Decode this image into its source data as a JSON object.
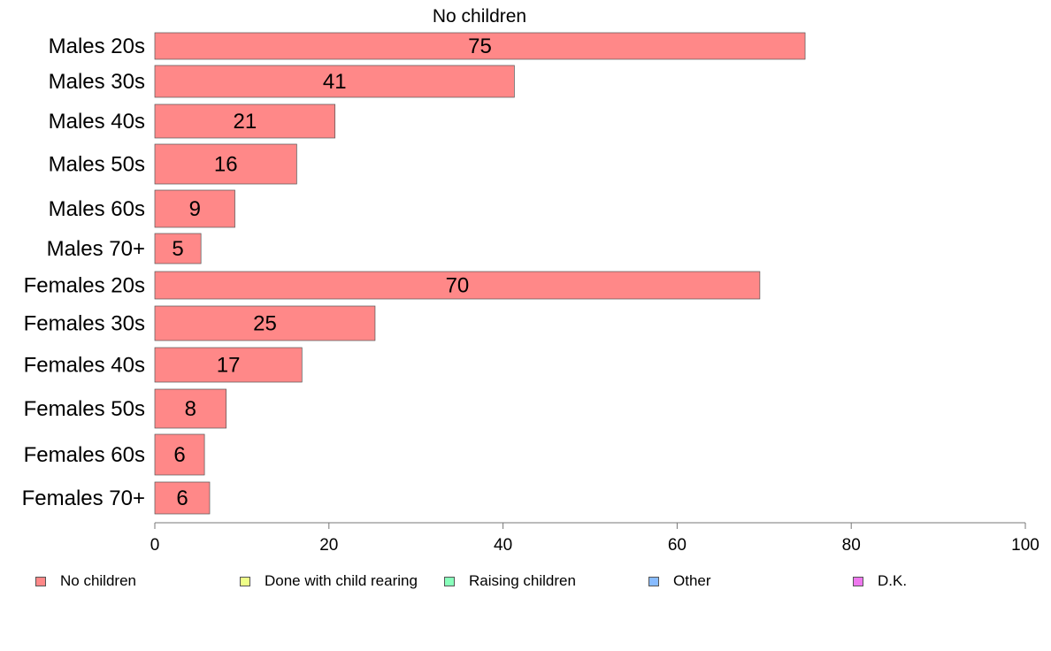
{
  "chart_data": {
    "type": "bar",
    "orientation": "horizontal",
    "title": "No children",
    "categories": [
      "Males 20s",
      "Males 30s",
      "Males 40s",
      "Males 50s",
      "Males 60s",
      "Males 70+",
      "Females 20s",
      "Females 30s",
      "Females 40s",
      "Females 50s",
      "Females 60s",
      "Females 70+"
    ],
    "values": [
      75,
      41,
      21,
      16,
      9,
      5,
      70,
      25,
      17,
      8,
      6,
      6
    ],
    "bar_lengths": [
      74.7,
      41.3,
      20.7,
      16.3,
      9.2,
      5.3,
      69.5,
      25.3,
      16.9,
      8.2,
      5.7,
      6.3
    ],
    "xlim": [
      0,
      100
    ],
    "xticks": [
      "0",
      "20",
      "40",
      "60",
      "80",
      "100"
    ],
    "grid": false,
    "bar_color": "#ff8888",
    "legend_position": "bottom",
    "legend": [
      {
        "label": "No children",
        "color": "#ff8888"
      },
      {
        "label": "Done with child rearing",
        "color": "#eeff88"
      },
      {
        "label": "Raising children",
        "color": "#88ffbb"
      },
      {
        "label": "Other",
        "color": "#88bbff"
      },
      {
        "label": "D.K.",
        "color": "#ee77ee"
      }
    ]
  }
}
